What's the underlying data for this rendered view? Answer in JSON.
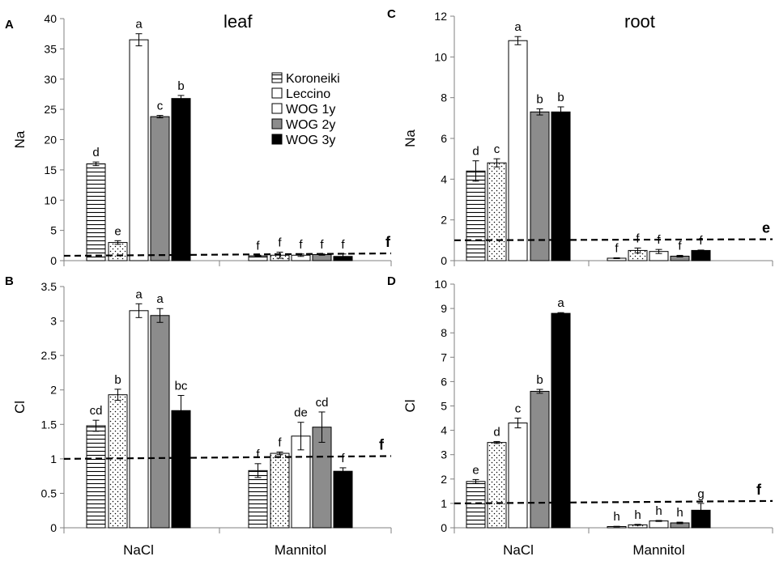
{
  "series_names": [
    "Koroneiki",
    "Leccino",
    "WOG 1y",
    "WOG 2y",
    "WOG 3y"
  ],
  "colors": {
    "koroneiki": "#ffffff",
    "leccino": "#ffffff",
    "wog1y": "#ffffff",
    "wog2y": "#8c8c8c",
    "wog3y": "#000000",
    "axis": "#808080"
  },
  "chart_data": [
    {
      "type": "bar",
      "panel_label": "A",
      "title": "leaf",
      "ylabel": "Na",
      "ylim": [
        0,
        40
      ],
      "yticks": [
        "0",
        "5",
        "10",
        "15",
        "20",
        "25",
        "30",
        "35",
        "40"
      ],
      "ytick_values": [
        0,
        5,
        10,
        15,
        20,
        25,
        30,
        35,
        40
      ],
      "categories": [
        "NaCl",
        "Mannitol"
      ],
      "series": [
        {
          "name": "Koroneiki",
          "values": [
            16.0,
            0.8
          ],
          "errors": [
            0.3,
            0.1
          ],
          "letters": [
            "d",
            "f"
          ]
        },
        {
          "name": "Leccino",
          "values": [
            3.0,
            0.9
          ],
          "errors": [
            0.3,
            0.5
          ],
          "letters": [
            "e",
            "f"
          ]
        },
        {
          "name": "WOG 1y",
          "values": [
            36.5,
            0.9
          ],
          "errors": [
            1.0,
            0.2
          ],
          "letters": [
            "a",
            "f"
          ]
        },
        {
          "name": "WOG 2y",
          "values": [
            23.8,
            1.0
          ],
          "errors": [
            0.2,
            0.1
          ],
          "letters": [
            "c",
            "f"
          ]
        },
        {
          "name": "WOG 3y",
          "values": [
            26.8,
            0.7
          ],
          "errors": [
            0.5,
            0.4
          ],
          "letters": [
            "b",
            "f"
          ]
        }
      ],
      "reference_line": {
        "start": 0.8,
        "end": 1.2,
        "label": "f"
      }
    },
    {
      "type": "bar",
      "panel_label": "B",
      "title": "",
      "ylabel": "Cl",
      "ylim": [
        0,
        3.5
      ],
      "yticks": [
        "0",
        "0.5",
        "1",
        "1.5",
        "2",
        "2.5",
        "3",
        "3.5"
      ],
      "ytick_values": [
        0,
        0.5,
        1,
        1.5,
        2,
        2.5,
        3,
        3.5
      ],
      "categories": [
        "NaCl",
        "Mannitol"
      ],
      "series": [
        {
          "name": "Koroneiki",
          "values": [
            1.48,
            0.83
          ],
          "errors": [
            0.08,
            0.1
          ],
          "letters": [
            "cd",
            "f"
          ]
        },
        {
          "name": "Leccino",
          "values": [
            1.93,
            1.08
          ],
          "errors": [
            0.08,
            0.02
          ],
          "letters": [
            "b",
            "f"
          ]
        },
        {
          "name": "WOG 1y",
          "values": [
            3.15,
            1.33
          ],
          "errors": [
            0.1,
            0.2
          ],
          "letters": [
            "a",
            "de"
          ]
        },
        {
          "name": "WOG 2y",
          "values": [
            3.08,
            1.46
          ],
          "errors": [
            0.1,
            0.22
          ],
          "letters": [
            "a",
            "cd"
          ]
        },
        {
          "name": "WOG 3y",
          "values": [
            1.7,
            0.82
          ],
          "errors": [
            0.22,
            0.05
          ],
          "letters": [
            "bc",
            "f"
          ]
        }
      ],
      "reference_line": {
        "start": 1.0,
        "end": 1.04,
        "label": "f"
      }
    },
    {
      "type": "bar",
      "panel_label": "C",
      "title": "root",
      "ylabel": "Na",
      "ylim": [
        0,
        12
      ],
      "yticks": [
        "0",
        "2",
        "4",
        "6",
        "8",
        "10",
        "12"
      ],
      "ytick_values": [
        0,
        2,
        4,
        6,
        8,
        10,
        12
      ],
      "categories": [
        "NaCl",
        "Mannitol"
      ],
      "series": [
        {
          "name": "Koroneiki",
          "values": [
            4.4,
            0.12
          ],
          "errors": [
            0.5,
            0.02
          ],
          "letters": [
            "d",
            "f"
          ]
        },
        {
          "name": "Leccino",
          "values": [
            4.8,
            0.5
          ],
          "errors": [
            0.2,
            0.12
          ],
          "letters": [
            "c",
            "f"
          ]
        },
        {
          "name": "WOG 1y",
          "values": [
            10.8,
            0.45
          ],
          "errors": [
            0.2,
            0.1
          ],
          "letters": [
            "a",
            "f"
          ]
        },
        {
          "name": "WOG 2y",
          "values": [
            7.3,
            0.22
          ],
          "errors": [
            0.15,
            0.04
          ],
          "letters": [
            "b",
            "f"
          ]
        },
        {
          "name": "WOG 3y",
          "values": [
            7.3,
            0.5
          ],
          "errors": [
            0.25,
            0.02
          ],
          "letters": [
            "b",
            "f"
          ]
        }
      ],
      "reference_line": {
        "start": 1.0,
        "end": 1.05,
        "label": "e"
      }
    },
    {
      "type": "bar",
      "panel_label": "D",
      "title": "",
      "ylabel": "Cl",
      "ylim": [
        0,
        10
      ],
      "yticks": [
        "0",
        "1",
        "2",
        "3",
        "4",
        "5",
        "6",
        "7",
        "8",
        "9",
        "10"
      ],
      "ytick_values": [
        0,
        1,
        2,
        3,
        4,
        5,
        6,
        7,
        8,
        9,
        10
      ],
      "categories": [
        "NaCl",
        "Mannitol"
      ],
      "series": [
        {
          "name": "Koroneiki",
          "values": [
            1.9,
            0.05
          ],
          "errors": [
            0.08,
            0.01
          ],
          "letters": [
            "e",
            "h"
          ]
        },
        {
          "name": "Leccino",
          "values": [
            3.5,
            0.12
          ],
          "errors": [
            0.04,
            0.02
          ],
          "letters": [
            "d",
            "h"
          ]
        },
        {
          "name": "WOG 1y",
          "values": [
            4.3,
            0.28
          ],
          "errors": [
            0.2,
            0.02
          ],
          "letters": [
            "c",
            "h"
          ]
        },
        {
          "name": "WOG 2y",
          "values": [
            5.6,
            0.2
          ],
          "errors": [
            0.08,
            0.03
          ],
          "letters": [
            "b",
            "h"
          ]
        },
        {
          "name": "WOG 3y",
          "values": [
            8.8,
            0.72
          ],
          "errors": [
            0.03,
            0.28
          ],
          "letters": [
            "a",
            "g"
          ]
        }
      ],
      "reference_line": {
        "start": 1.0,
        "end": 1.1,
        "label": "f"
      }
    }
  ]
}
